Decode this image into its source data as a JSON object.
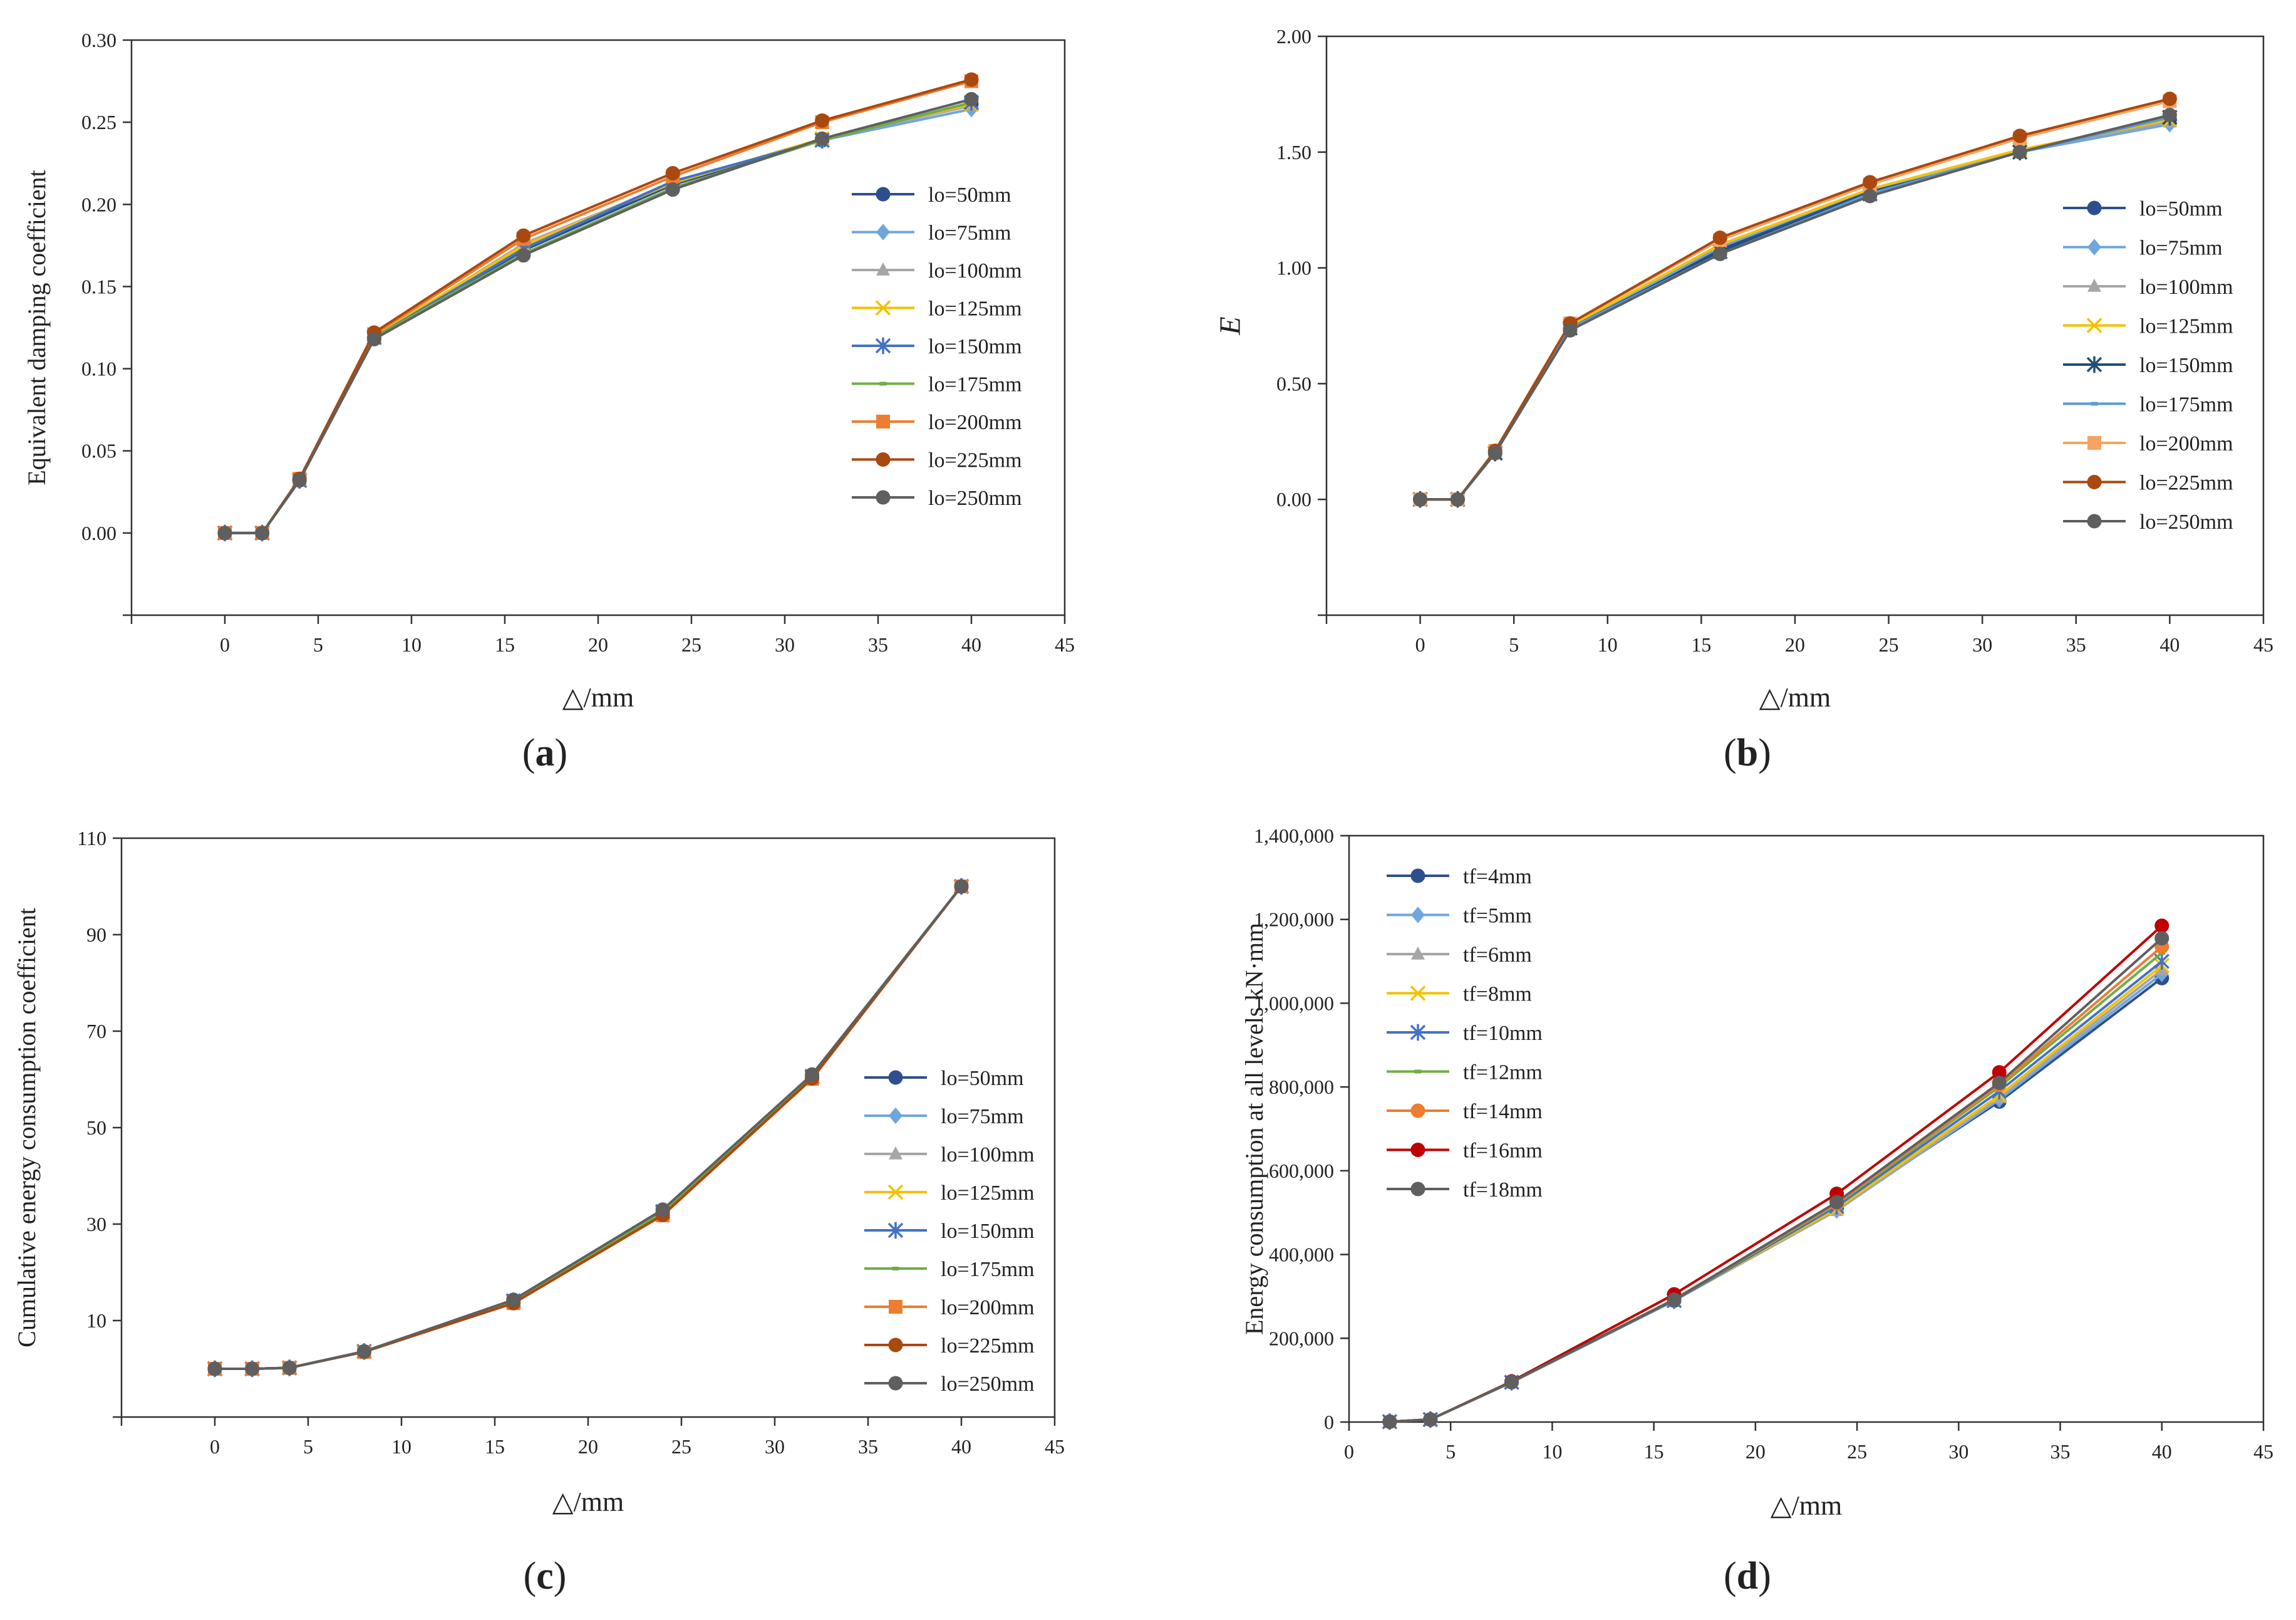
{
  "figure": {
    "panel_labels": [
      "(a)",
      "(b)",
      "(c)",
      "(d)"
    ]
  },
  "chart_data": [
    {
      "id": "a",
      "type": "line",
      "title": "",
      "caption": "(a)",
      "xlabel": "△/mm",
      "ylabel": "Equivalent damping coefficient",
      "xlim": [
        -5,
        45
      ],
      "ylim": [
        -0.05,
        0.3
      ],
      "xticks": [
        "0",
        "5",
        "10",
        "15",
        "20",
        "25",
        "30",
        "35",
        "40",
        "45"
      ],
      "yticks": [
        "0.00",
        "0.05",
        "0.10",
        "0.15",
        "0.20",
        "0.25",
        "0.30"
      ],
      "legend": "center-right",
      "x": [
        0,
        2,
        4,
        8,
        16,
        24,
        32,
        40
      ],
      "series": [
        {
          "name": "lo=50mm",
          "color": "#2e4f8f",
          "marker": "circle",
          "values": [
            0,
            0,
            0.032,
            0.119,
            0.172,
            0.212,
            0.239,
            0.261
          ]
        },
        {
          "name": "lo=75mm",
          "color": "#6fa6dc",
          "marker": "diamond",
          "values": [
            0,
            0,
            0.032,
            0.119,
            0.174,
            0.214,
            0.239,
            0.258
          ]
        },
        {
          "name": "lo=100mm",
          "color": "#a6a6a6",
          "marker": "triangle",
          "values": [
            0,
            0,
            0.032,
            0.119,
            0.176,
            0.213,
            0.24,
            0.26
          ]
        },
        {
          "name": "lo=125mm",
          "color": "#f2c200",
          "marker": "x",
          "values": [
            0,
            0,
            0.032,
            0.12,
            0.175,
            0.213,
            0.24,
            0.261
          ]
        },
        {
          "name": "lo=150mm",
          "color": "#4472c4",
          "marker": "star",
          "values": [
            0,
            0,
            0.032,
            0.119,
            0.173,
            0.214,
            0.239,
            0.262
          ]
        },
        {
          "name": "lo=175mm",
          "color": "#70ad47",
          "marker": "dash",
          "values": [
            0,
            0,
            0.032,
            0.119,
            0.17,
            0.21,
            0.239,
            0.262
          ]
        },
        {
          "name": "lo=200mm",
          "color": "#ed7d31",
          "marker": "square",
          "values": [
            0,
            0,
            0.033,
            0.121,
            0.179,
            0.217,
            0.25,
            0.275
          ]
        },
        {
          "name": "lo=225mm",
          "color": "#a9480f",
          "marker": "circle",
          "values": [
            0,
            0,
            0.033,
            0.122,
            0.181,
            0.219,
            0.251,
            0.276
          ]
        },
        {
          "name": "lo=250mm",
          "color": "#5f5f5f",
          "marker": "circle",
          "values": [
            0,
            0,
            0.032,
            0.118,
            0.169,
            0.209,
            0.24,
            0.264
          ]
        }
      ]
    },
    {
      "id": "b",
      "type": "line",
      "title": "",
      "caption": "(b)",
      "xlabel": "△/mm",
      "ylabel": "E",
      "xlim": [
        -5,
        45
      ],
      "ylim": [
        -0.5,
        2.0
      ],
      "xticks": [
        "0",
        "5",
        "10",
        "15",
        "20",
        "25",
        "30",
        "35",
        "40",
        "45"
      ],
      "yticks": [
        "0.00",
        "0.50",
        "1.00",
        "1.50",
        "2.00"
      ],
      "legend": "center-right",
      "x": [
        0,
        2,
        4,
        8,
        16,
        24,
        32,
        40
      ],
      "series": [
        {
          "name": "lo=50mm",
          "color": "#2e4f8f",
          "marker": "circle",
          "values": [
            0,
            0,
            0.2,
            0.74,
            1.08,
            1.33,
            1.5,
            1.64
          ]
        },
        {
          "name": "lo=75mm",
          "color": "#6fa6dc",
          "marker": "diamond",
          "values": [
            0,
            0,
            0.2,
            0.74,
            1.09,
            1.34,
            1.5,
            1.62
          ]
        },
        {
          "name": "lo=100mm",
          "color": "#a6a6a6",
          "marker": "triangle",
          "values": [
            0,
            0,
            0.2,
            0.75,
            1.1,
            1.34,
            1.51,
            1.63
          ]
        },
        {
          "name": "lo=125mm",
          "color": "#f2c200",
          "marker": "x",
          "values": [
            0,
            0,
            0.2,
            0.75,
            1.1,
            1.34,
            1.51,
            1.64
          ]
        },
        {
          "name": "lo=150mm",
          "color": "#1f4e79",
          "marker": "star",
          "values": [
            0,
            0,
            0.2,
            0.74,
            1.07,
            1.32,
            1.5,
            1.65
          ]
        },
        {
          "name": "lo=175mm",
          "color": "#5b9bd5",
          "marker": "dash",
          "values": [
            0,
            0,
            0.2,
            0.74,
            1.06,
            1.32,
            1.5,
            1.65
          ]
        },
        {
          "name": "lo=200mm",
          "color": "#f4a460",
          "marker": "square",
          "values": [
            0,
            0,
            0.21,
            0.76,
            1.12,
            1.36,
            1.56,
            1.72
          ]
        },
        {
          "name": "lo=225mm",
          "color": "#a9480f",
          "marker": "circle",
          "values": [
            0,
            0,
            0.21,
            0.76,
            1.13,
            1.37,
            1.57,
            1.73
          ]
        },
        {
          "name": "lo=250mm",
          "color": "#5f5f5f",
          "marker": "circle",
          "values": [
            0,
            0,
            0.2,
            0.73,
            1.06,
            1.31,
            1.5,
            1.66
          ]
        }
      ]
    },
    {
      "id": "c",
      "type": "line",
      "title": "",
      "caption": "(c)",
      "xlabel": "△/mm",
      "ylabel": "Cumulative energy consumption coefficient",
      "xlim": [
        -5,
        45
      ],
      "ylim": [
        -10,
        110
      ],
      "xticks": [
        "0",
        "5",
        "10",
        "15",
        "20",
        "25",
        "30",
        "35",
        "40",
        "45"
      ],
      "yticks": [
        "10",
        "30",
        "50",
        "70",
        "90",
        "110"
      ],
      "legend": "center-right",
      "x": [
        0,
        2,
        4,
        8,
        16,
        24,
        32,
        40
      ],
      "series": [
        {
          "name": "lo=50mm",
          "color": "#2e4f8f",
          "marker": "circle",
          "values": [
            0,
            0,
            0.2,
            3.6,
            14.0,
            32.5,
            60.5,
            100.0
          ]
        },
        {
          "name": "lo=75mm",
          "color": "#6fa6dc",
          "marker": "diamond",
          "values": [
            0,
            0,
            0.2,
            3.6,
            14.2,
            32.8,
            60.8,
            100.0
          ]
        },
        {
          "name": "lo=100mm",
          "color": "#a6a6a6",
          "marker": "triangle",
          "values": [
            0,
            0,
            0.2,
            3.6,
            14.1,
            32.6,
            60.6,
            100.0
          ]
        },
        {
          "name": "lo=125mm",
          "color": "#f2c200",
          "marker": "x",
          "values": [
            0,
            0,
            0.2,
            3.6,
            14.0,
            32.4,
            60.4,
            100.0
          ]
        },
        {
          "name": "lo=150mm",
          "color": "#4472c4",
          "marker": "star",
          "values": [
            0,
            0,
            0.2,
            3.6,
            14.1,
            32.6,
            60.6,
            100.0
          ]
        },
        {
          "name": "lo=175mm",
          "color": "#70ad47",
          "marker": "dash",
          "values": [
            0,
            0,
            0.2,
            3.6,
            14.0,
            32.5,
            60.5,
            100.0
          ]
        },
        {
          "name": "lo=200mm",
          "color": "#ed7d31",
          "marker": "square",
          "values": [
            0,
            0,
            0.2,
            3.5,
            13.6,
            31.8,
            60.1,
            100.0
          ]
        },
        {
          "name": "lo=225mm",
          "color": "#a9480f",
          "marker": "circle",
          "values": [
            0,
            0,
            0.2,
            3.5,
            13.6,
            31.9,
            60.2,
            100.0
          ]
        },
        {
          "name": "lo=250mm",
          "color": "#5f5f5f",
          "marker": "circle",
          "values": [
            0,
            0,
            0.2,
            3.6,
            14.3,
            33.0,
            61.0,
            100.0
          ]
        }
      ]
    },
    {
      "id": "d",
      "type": "line",
      "title": "",
      "caption": "(d)",
      "xlabel": "△/mm",
      "ylabel": "Energy consumption at all levels kN·mm",
      "xlim": [
        0,
        45
      ],
      "ylim": [
        0,
        1400000
      ],
      "xticks": [
        "0",
        "5",
        "10",
        "15",
        "20",
        "25",
        "30",
        "35",
        "40",
        "45"
      ],
      "yticks": [
        "0",
        "200,000",
        "400,000",
        "600,000",
        "800,000",
        "1,000,000",
        "1,200,000",
        "1,400,000"
      ],
      "legend": "top-left",
      "x": [
        2,
        4,
        8,
        16,
        24,
        32,
        40
      ],
      "series": [
        {
          "name": "tf=4mm",
          "color": "#2e4f8f",
          "marker": "circle",
          "values": [
            1000,
            6000,
            95000,
            290000,
            510000,
            765000,
            1060000
          ]
        },
        {
          "name": "tf=5mm",
          "color": "#6fa6dc",
          "marker": "diamond",
          "values": [
            1000,
            6000,
            95000,
            290000,
            505000,
            770000,
            1070000
          ]
        },
        {
          "name": "tf=6mm",
          "color": "#a6a6a6",
          "marker": "triangle",
          "values": [
            1000,
            6000,
            95000,
            290000,
            505000,
            775000,
            1080000
          ]
        },
        {
          "name": "tf=8mm",
          "color": "#f2c200",
          "marker": "x",
          "values": [
            1000,
            6000,
            95000,
            290000,
            510000,
            780000,
            1090000
          ]
        },
        {
          "name": "tf=10mm",
          "color": "#4472c4",
          "marker": "star",
          "values": [
            1000,
            6000,
            95000,
            290000,
            515000,
            790000,
            1100000
          ]
        },
        {
          "name": "tf=12mm",
          "color": "#70ad47",
          "marker": "dash",
          "values": [
            1000,
            6000,
            95000,
            292000,
            520000,
            800000,
            1120000
          ]
        },
        {
          "name": "tf=14mm",
          "color": "#ed7d31",
          "marker": "circle",
          "values": [
            1000,
            6000,
            96000,
            293000,
            522000,
            805000,
            1135000
          ]
        },
        {
          "name": "tf=16mm",
          "color": "#c00000",
          "marker": "circle",
          "values": [
            1000,
            6000,
            97000,
            305000,
            545000,
            835000,
            1185000
          ]
        },
        {
          "name": "tf=18mm",
          "color": "#5f5f5f",
          "marker": "circle",
          "values": [
            1000,
            6000,
            96000,
            292000,
            525000,
            810000,
            1155000
          ]
        }
      ]
    }
  ]
}
